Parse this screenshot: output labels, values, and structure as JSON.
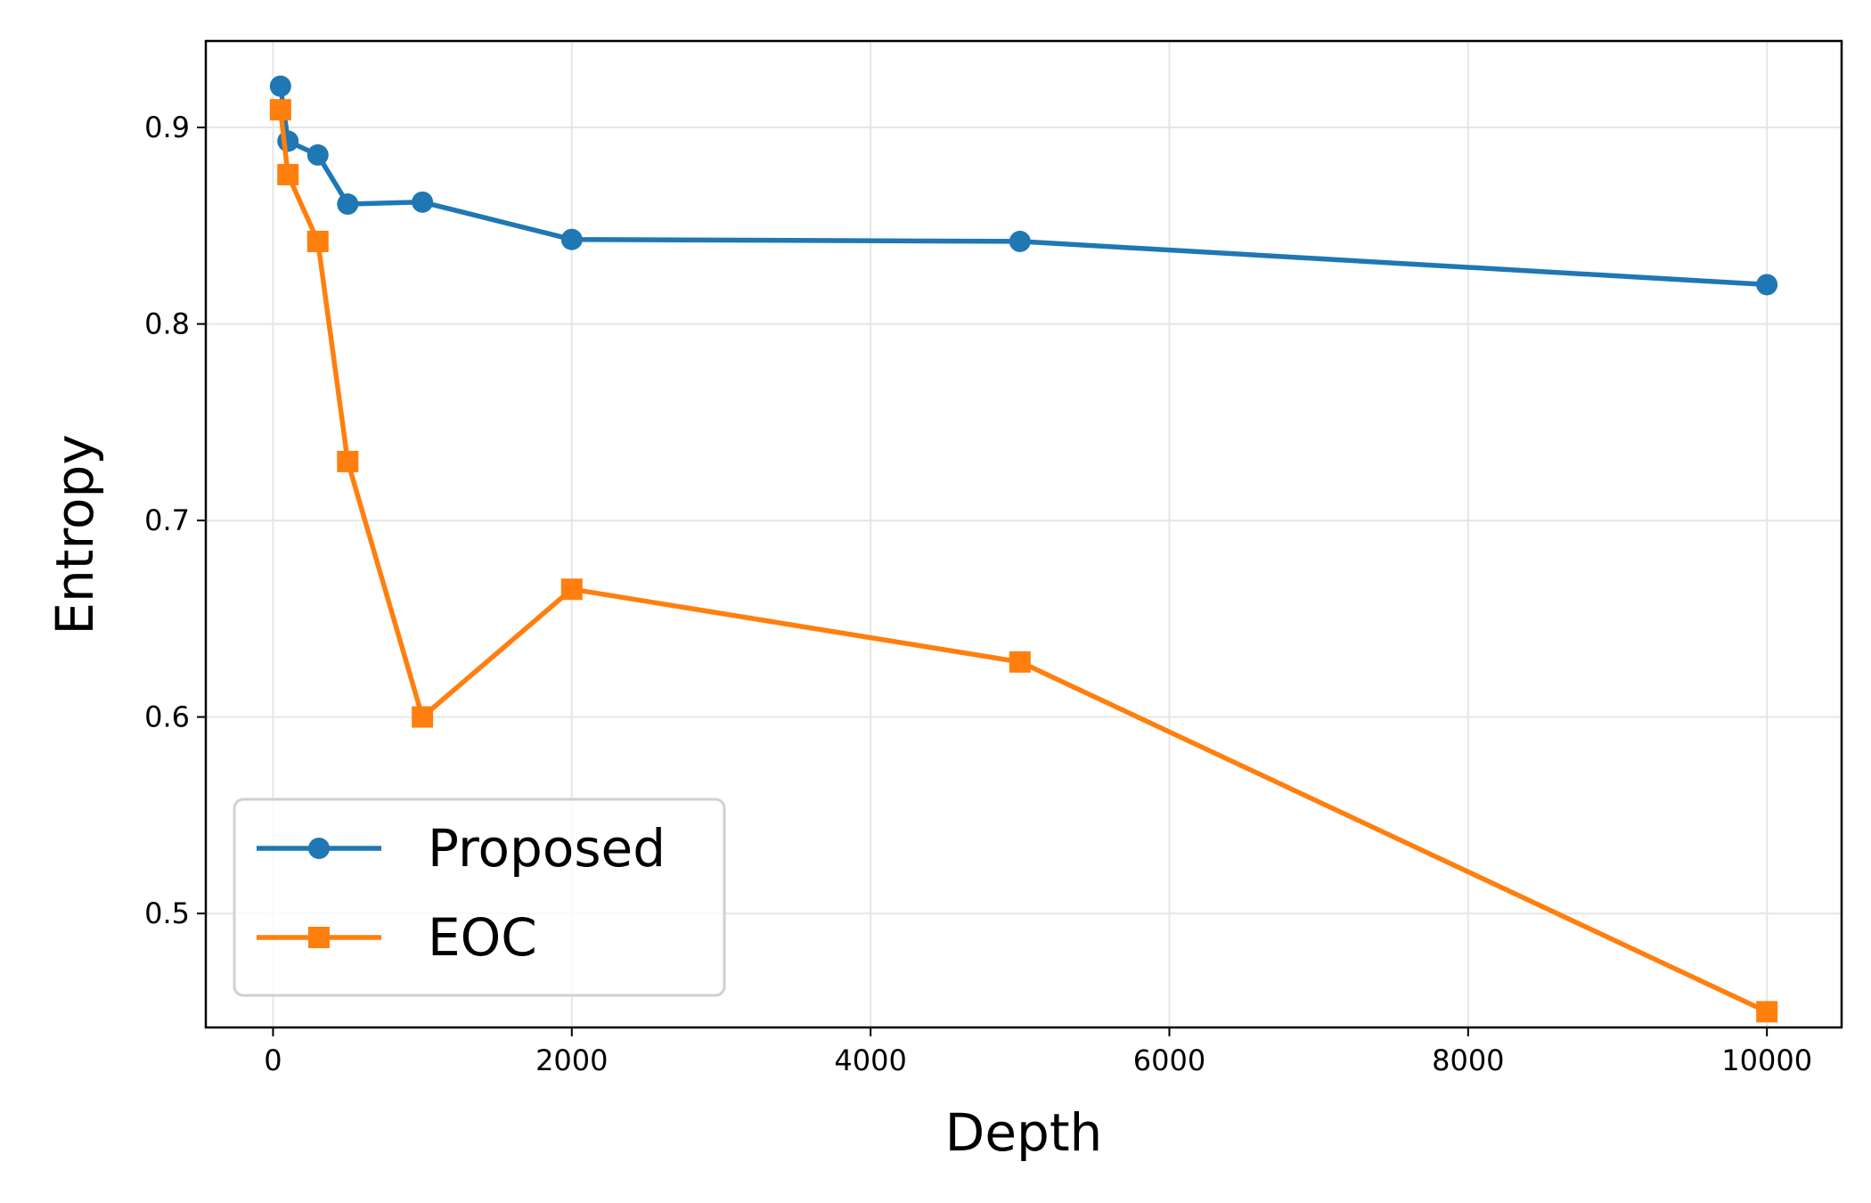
{
  "chart_data": {
    "type": "line",
    "title": "",
    "xlabel": "Depth",
    "ylabel": "Entropy",
    "xlim": [
      -450,
      10500
    ],
    "ylim": [
      0.442,
      0.944
    ],
    "xticks": [
      0,
      2000,
      4000,
      6000,
      8000,
      10000
    ],
    "xtick_labels": [
      "0",
      "2000",
      "4000",
      "6000",
      "8000",
      "10000"
    ],
    "yticks": [
      0.5,
      0.6,
      0.7,
      0.8,
      0.9
    ],
    "ytick_labels": [
      "0.5",
      "0.6",
      "0.7",
      "0.8",
      "0.9"
    ],
    "grid": true,
    "legend_position": "bottom-left",
    "x": [
      50,
      100,
      300,
      500,
      1000,
      2000,
      5000,
      10000
    ],
    "series": [
      {
        "name": "Proposed",
        "color": "#1f77b4",
        "marker": "circle",
        "values": [
          0.921,
          0.893,
          0.886,
          0.861,
          0.862,
          0.843,
          0.842,
          0.82
        ]
      },
      {
        "name": "EOC",
        "color": "#ff7f0e",
        "marker": "square",
        "values": [
          0.909,
          0.876,
          0.842,
          0.73,
          0.6,
          0.665,
          0.628,
          0.45
        ]
      }
    ]
  }
}
